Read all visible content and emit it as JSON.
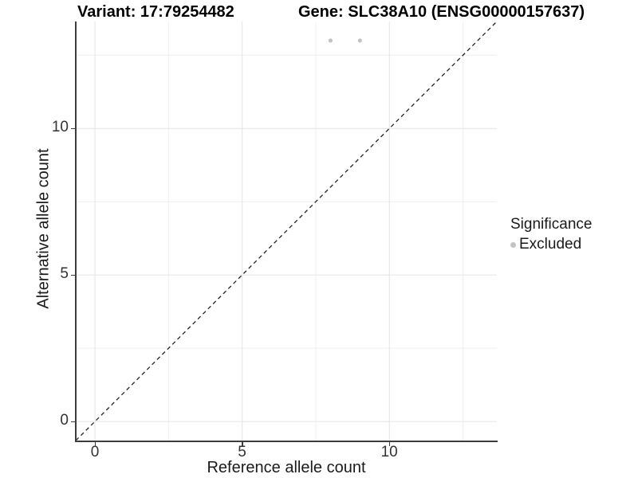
{
  "chart_data": {
    "type": "scatter",
    "title_left": "Variant: 17:79254482",
    "title_right": "Gene: SLC38A10 (ENSG00000157637)",
    "xlabel": "Reference allele count",
    "ylabel": "Alternative allele count",
    "xlim": [
      -0.65,
      13.65
    ],
    "ylim": [
      -0.65,
      13.65
    ],
    "x_major_ticks": [
      0,
      5,
      10
    ],
    "y_major_ticks": [
      0,
      5,
      10
    ],
    "x_minor_gridlines": [
      2.5,
      7.5,
      12.5
    ],
    "y_minor_gridlines": [
      2.5,
      7.5,
      12.5
    ],
    "grid": "major and minor, light gray on white",
    "identity_line": {
      "slope": 1,
      "intercept": 0,
      "style": "dashed",
      "color": "#222222"
    },
    "series": [
      {
        "name": "Excluded",
        "color": "#c3c3c3",
        "marker": "circle",
        "points": [
          {
            "x": 8,
            "y": 13
          },
          {
            "x": 9,
            "y": 13
          }
        ]
      }
    ],
    "legend": {
      "title": "Significance",
      "position": "right",
      "entries": [
        {
          "label": "Excluded",
          "color": "#c3c3c3",
          "marker": "circle"
        }
      ]
    }
  }
}
